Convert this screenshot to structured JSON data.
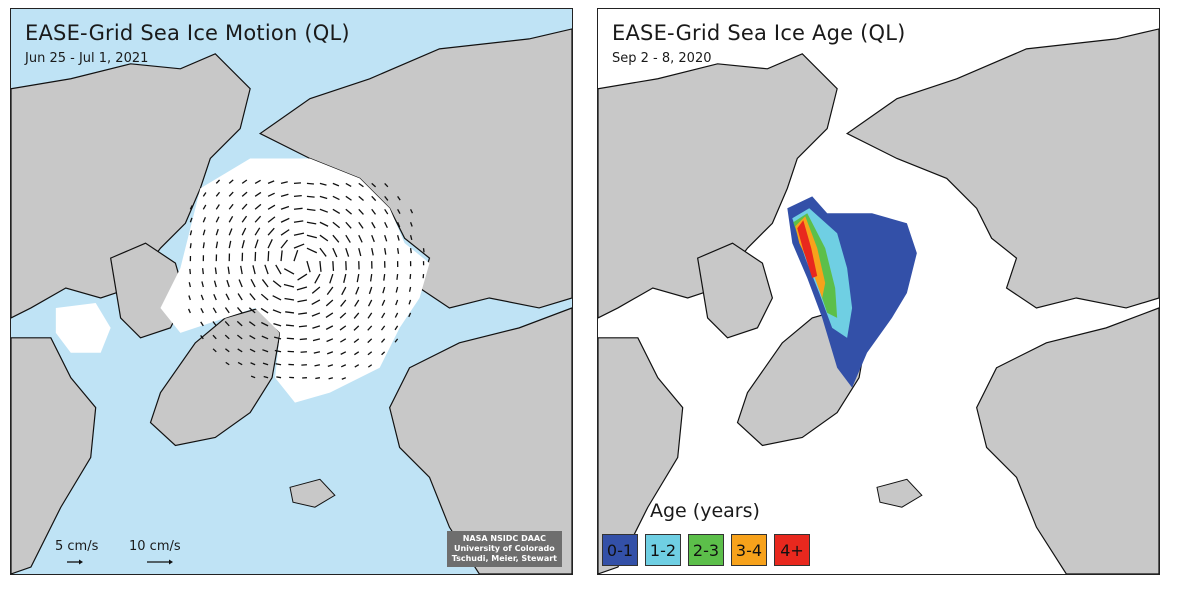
{
  "motion_panel": {
    "title": "EASE-Grid Sea Ice Motion (QL)",
    "date": "Jun 25 - Jul 1, 2021",
    "scale_5": "5 cm/s",
    "scale_10": "10 cm/s",
    "credit_line1": "NASA NSIDC DAAC",
    "credit_line2": "University of Colorado",
    "credit_line3": "Tschudi, Meier, Stewart"
  },
  "age_panel": {
    "title": "EASE-Grid Sea Ice Age (QL)",
    "date": "Sep 2 - 8, 2020",
    "legend_title": "Age (years)",
    "legend": [
      {
        "label": "0-1",
        "color": "#3350a8"
      },
      {
        "label": "1-2",
        "color": "#6fcfe3"
      },
      {
        "label": "2-3",
        "color": "#5cbf4a"
      },
      {
        "label": "3-4",
        "color": "#f7a21b"
      },
      {
        "label": "4+",
        "color": "#e8281e"
      }
    ]
  },
  "colors": {
    "land": "#c8c8c8",
    "ocean": "#bfe3f5",
    "ice": "#ffffff",
    "coast": "#111111"
  }
}
